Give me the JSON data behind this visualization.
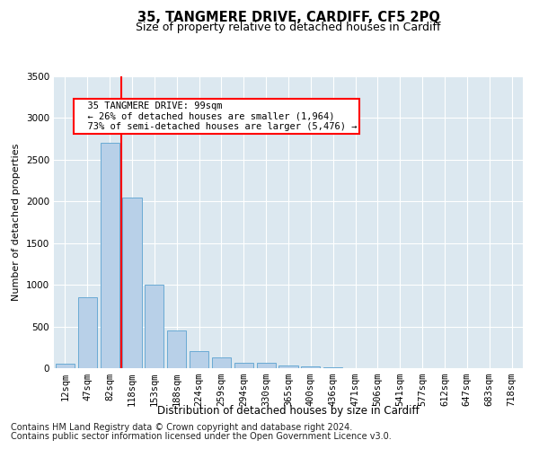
{
  "title": "35, TANGMERE DRIVE, CARDIFF, CF5 2PQ",
  "subtitle": "Size of property relative to detached houses in Cardiff",
  "xlabel": "Distribution of detached houses by size in Cardiff",
  "ylabel": "Number of detached properties",
  "categories": [
    "12sqm",
    "47sqm",
    "82sqm",
    "118sqm",
    "153sqm",
    "188sqm",
    "224sqm",
    "259sqm",
    "294sqm",
    "330sqm",
    "365sqm",
    "400sqm",
    "436sqm",
    "471sqm",
    "506sqm",
    "541sqm",
    "577sqm",
    "612sqm",
    "647sqm",
    "683sqm",
    "718sqm"
  ],
  "values": [
    50,
    850,
    2700,
    2050,
    1000,
    450,
    200,
    130,
    70,
    60,
    30,
    20,
    15,
    5,
    2,
    1,
    0,
    0,
    0,
    0,
    0
  ],
  "bar_color": "#b8d0e8",
  "bar_edge_color": "#6aaad4",
  "red_line_x": 2.5,
  "annotation_text": "  35 TANGMERE DRIVE: 99sqm\n  ← 26% of detached houses are smaller (1,964)\n  73% of semi-detached houses are larger (5,476) →",
  "annotation_box_color": "white",
  "annotation_box_edge_color": "red",
  "ylim": [
    0,
    3500
  ],
  "yticks": [
    0,
    500,
    1000,
    1500,
    2000,
    2500,
    3000,
    3500
  ],
  "background_color": "#dce8f0",
  "grid_color": "white",
  "footer_line1": "Contains HM Land Registry data © Crown copyright and database right 2024.",
  "footer_line2": "Contains public sector information licensed under the Open Government Licence v3.0.",
  "title_fontsize": 10.5,
  "subtitle_fontsize": 9,
  "xlabel_fontsize": 8.5,
  "ylabel_fontsize": 8,
  "tick_fontsize": 7.5,
  "annotation_fontsize": 7.5,
  "footer_fontsize": 7
}
